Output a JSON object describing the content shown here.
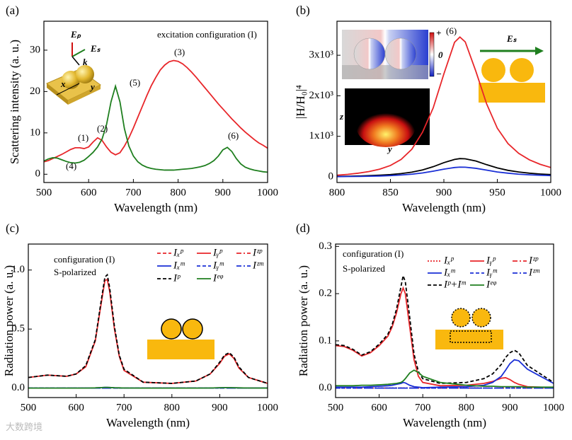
{
  "watermark": "大数跨境",
  "chart_data": [
    {
      "type": "line",
      "label": "(a)",
      "xlabel": "Wavelength (nm)",
      "ylabel": "Scattering intensity (a. u.)",
      "xlim": [
        500,
        1000
      ],
      "xticks": [
        500,
        600,
        700,
        800,
        900,
        1000
      ],
      "ylim": [
        -2,
        37
      ],
      "yticks": [
        0,
        10,
        20,
        30
      ],
      "annotations": [
        "(1)",
        "(2)",
        "(3)",
        "(4)",
        "(5)",
        "(6)",
        "excitation configuration (I)"
      ],
      "inset_labels": [
        "Eₚ",
        "Eₛ",
        "k",
        "x",
        "y"
      ],
      "x": [
        500,
        510,
        520,
        530,
        540,
        550,
        560,
        570,
        580,
        590,
        600,
        610,
        620,
        630,
        640,
        650,
        660,
        670,
        680,
        690,
        700,
        710,
        720,
        730,
        740,
        750,
        760,
        770,
        780,
        790,
        800,
        810,
        820,
        830,
        840,
        850,
        860,
        870,
        880,
        890,
        900,
        910,
        920,
        930,
        940,
        950,
        960,
        970,
        980,
        990,
        1000
      ],
      "series": [
        {
          "color": "#e8262a",
          "dash": "solid",
          "values": [
            3.0,
            3.3,
            3.8,
            4.3,
            4.8,
            5.4,
            6.0,
            6.4,
            6.4,
            6.2,
            6.6,
            7.8,
            8.8,
            8.2,
            6.6,
            5.3,
            4.7,
            5.2,
            6.8,
            8.8,
            11.2,
            13.8,
            16.4,
            19.0,
            21.4,
            23.4,
            25.2,
            26.4,
            27.2,
            27.5,
            27.3,
            26.7,
            25.8,
            24.7,
            23.5,
            22.2,
            20.9,
            19.6,
            18.3,
            17.0,
            15.8,
            14.6,
            13.4,
            12.3,
            11.2,
            10.2,
            9.3,
            8.4,
            7.6,
            7.0,
            6.3
          ]
        },
        {
          "color": "#1f7f1f",
          "dash": "solid",
          "values": [
            3.2,
            3.7,
            4.0,
            3.9,
            3.5,
            3.1,
            2.8,
            2.7,
            2.9,
            3.4,
            4.3,
            5.3,
            6.6,
            8.5,
            12,
            17.5,
            21.3,
            17.5,
            11.0,
            6.8,
            4.4,
            3.0,
            2.2,
            1.7,
            1.4,
            1.2,
            1.1,
            1.0,
            1.0,
            1.0,
            1.1,
            1.2,
            1.3,
            1.4,
            1.6,
            1.8,
            2.1,
            2.6,
            3.3,
            4.4,
            5.9,
            6.5,
            5.5,
            3.8,
            2.5,
            1.7,
            1.3,
            1.0,
            0.8,
            0.6,
            0.5
          ]
        }
      ]
    },
    {
      "type": "line",
      "label": "(b)",
      "xlabel": "Wavelength (nm)",
      "ylabel": "|H/H₀|⁴",
      "xlim": [
        800,
        1000
      ],
      "xticks": [
        800,
        850,
        900,
        950,
        1000
      ],
      "ylim": [
        -140,
        3840
      ],
      "yticks": [
        0,
        {
          "value": 1000,
          "label": "1x10³"
        },
        {
          "value": 2000,
          "label": "2x10³"
        },
        {
          "value": 3000,
          "label": "3x10³"
        }
      ],
      "annotations": [
        "(6)"
      ],
      "inset_labels": [
        "+",
        "0",
        "−",
        "z",
        "y",
        "Eₛ"
      ],
      "x": [
        800,
        810,
        820,
        830,
        840,
        850,
        860,
        870,
        880,
        890,
        900,
        910,
        915,
        920,
        930,
        940,
        950,
        960,
        970,
        980,
        990,
        1000
      ],
      "series": [
        {
          "color": "#e8262a",
          "dash": "solid",
          "values": [
            40,
            60,
            90,
            130,
            190,
            280,
            430,
            680,
            1100,
            1700,
            2540,
            3320,
            3450,
            3330,
            2600,
            1800,
            1200,
            820,
            580,
            420,
            310,
            230
          ]
        },
        {
          "color": "#000000",
          "dash": "solid",
          "values": [
            10,
            15,
            20,
            30,
            40,
            55,
            80,
            115,
            170,
            250,
            350,
            430,
            450,
            445,
            390,
            300,
            220,
            160,
            120,
            90,
            70,
            55
          ]
        },
        {
          "color": "#1a2fd6",
          "dash": "solid",
          "values": [
            5,
            8,
            10,
            15,
            20,
            30,
            45,
            65,
            95,
            140,
            190,
            230,
            240,
            238,
            210,
            165,
            120,
            90,
            65,
            50,
            40,
            30
          ]
        }
      ]
    },
    {
      "type": "line",
      "label": "(c)",
      "xlabel": "Wavelength (nm)",
      "ylabel": "Radiation power (a. u.)",
      "xlim": [
        500,
        1000
      ],
      "xticks": [
        500,
        600,
        700,
        800,
        900,
        1000
      ],
      "ylim": [
        -0.08,
        1.22
      ],
      "yticks": [
        {
          "value": 0,
          "label": "0.0"
        },
        {
          "value": 0.5,
          "label": "0.5"
        },
        {
          "value": 1,
          "label": "1.0"
        }
      ],
      "annotations": [
        "configuration (I)",
        "S-polarized"
      ],
      "x": [
        500,
        540,
        580,
        600,
        620,
        640,
        650,
        660,
        665,
        670,
        680,
        690,
        700,
        740,
        800,
        850,
        880,
        900,
        910,
        920,
        930,
        940,
        960,
        1000
      ],
      "series": [
        {
          "name": "Iₓᵖ",
          "color": "#e8262a",
          "dash": "dashed",
          "values": [
            0,
            0,
            0,
            0,
            0,
            0,
            0,
            0,
            0,
            0,
            0,
            0,
            0,
            0,
            0,
            0,
            0,
            0,
            0,
            0,
            0,
            0,
            0,
            0
          ]
        },
        {
          "name": "Iᵧᵖ",
          "color": "#e8262a",
          "dash": "solid",
          "values": [
            0.09,
            0.11,
            0.1,
            0.12,
            0.18,
            0.4,
            0.66,
            0.91,
            0.92,
            0.82,
            0.5,
            0.27,
            0.15,
            0.05,
            0.04,
            0.06,
            0.12,
            0.21,
            0.27,
            0.29,
            0.25,
            0.17,
            0.09,
            0.04
          ]
        },
        {
          "name": "Iᶻᵖ",
          "color": "#e8262a",
          "dash": "dashdot",
          "values": [
            0,
            0,
            0,
            0,
            0,
            0,
            0,
            0,
            0,
            0,
            0,
            0,
            0,
            0,
            0,
            0,
            0,
            0,
            0,
            0,
            0,
            0,
            0,
            0
          ]
        },
        {
          "name": "Iₓᵐ",
          "color": "#1a2fd6",
          "dash": "solid",
          "values": [
            0,
            0,
            0,
            0,
            0,
            0.002,
            0.004,
            0.006,
            0.006,
            0.005,
            0.003,
            0.002,
            0.001,
            0,
            0,
            0,
            0.001,
            0.003,
            0.004,
            0.004,
            0.003,
            0.002,
            0.001,
            0
          ]
        },
        {
          "name": "Iᵧᵐ",
          "color": "#1a2fd6",
          "dash": "dashed",
          "values": [
            0,
            0,
            0,
            0,
            0,
            0,
            0,
            0,
            0,
            0,
            0,
            0,
            0,
            0,
            0,
            0,
            0,
            0,
            0,
            0,
            0,
            0,
            0,
            0
          ]
        },
        {
          "name": "Iᶻᵐ",
          "color": "#1a2fd6",
          "dash": "dashdot",
          "values": [
            0,
            0,
            0,
            0,
            0,
            0,
            0,
            0,
            0,
            0,
            0,
            0,
            0,
            0,
            0,
            0,
            0,
            0,
            0,
            0,
            0,
            0,
            0,
            0
          ]
        },
        {
          "name": "Iᵖ",
          "color": "#000000",
          "dash": "dashed",
          "values": [
            0.09,
            0.11,
            0.1,
            0.12,
            0.19,
            0.41,
            0.68,
            0.94,
            0.96,
            0.85,
            0.52,
            0.28,
            0.16,
            0.05,
            0.04,
            0.06,
            0.12,
            0.22,
            0.28,
            0.3,
            0.26,
            0.18,
            0.09,
            0.04
          ]
        },
        {
          "name": "Iᵉᵠ",
          "color": "#1f7f1f",
          "dash": "solid",
          "values": [
            0,
            0,
            0,
            0,
            0,
            0.002,
            0.004,
            0.006,
            0.006,
            0.005,
            0.003,
            0.002,
            0.001,
            0,
            0,
            0,
            0.001,
            0.003,
            0.004,
            0.004,
            0.003,
            0.002,
            0.001,
            0
          ]
        }
      ]
    },
    {
      "type": "line",
      "label": "(d)",
      "xlabel": "Wavelength (nm)",
      "ylabel": "Radiation power (a. u.)",
      "xlim": [
        500,
        1000
      ],
      "xticks": [
        500,
        600,
        700,
        800,
        900,
        1000
      ],
      "ylim": [
        -0.02,
        0.305
      ],
      "yticks": [
        {
          "value": 0,
          "label": "0.0"
        },
        {
          "value": 0.1,
          "label": "0.1"
        },
        {
          "value": 0.2,
          "label": "0.2"
        },
        {
          "value": 0.3,
          "label": "0.3"
        }
      ],
      "annotations": [
        "configuration (I)",
        "S-polarized"
      ],
      "x": [
        500,
        520,
        540,
        560,
        580,
        600,
        620,
        630,
        640,
        650,
        655,
        660,
        670,
        680,
        690,
        700,
        740,
        800,
        840,
        860,
        880,
        890,
        900,
        910,
        920,
        940,
        1000
      ],
      "series": [
        {
          "name": "Iₓᵖ",
          "color": "#e8262a",
          "dash": "dotted",
          "values": [
            0,
            0,
            0,
            0,
            0,
            0,
            0,
            0,
            0,
            0,
            0,
            0,
            0,
            0,
            0,
            0,
            0,
            0,
            0,
            0,
            0,
            0,
            0,
            0,
            0,
            0,
            0
          ]
        },
        {
          "name": "Iᵧᵖ",
          "color": "#e8262a",
          "dash": "solid",
          "values": [
            0.09,
            0.088,
            0.08,
            0.068,
            0.075,
            0.09,
            0.11,
            0.13,
            0.16,
            0.2,
            0.212,
            0.2,
            0.13,
            0.06,
            0.025,
            0.012,
            0.005,
            0.006,
            0.01,
            0.014,
            0.021,
            0.022,
            0.018,
            0.012,
            0.008,
            0.003,
            0.001
          ]
        },
        {
          "name": "Iᶻᵖ",
          "color": "#e8262a",
          "dash": "dashdot",
          "values": [
            0,
            0,
            0,
            0,
            0,
            0,
            0,
            0,
            0,
            0,
            0,
            0,
            0,
            0,
            0,
            0,
            0,
            0,
            0,
            0,
            0,
            0,
            0,
            0,
            0,
            0,
            0
          ]
        },
        {
          "name": "Iₓᵐ",
          "color": "#1a2fd6",
          "dash": "solid",
          "values": [
            0.002,
            0.002,
            0.002,
            0.002,
            0.003,
            0.004,
            0.005,
            0.006,
            0.008,
            0.01,
            0.012,
            0.011,
            0.006,
            0.003,
            0.002,
            0.001,
            0.002,
            0.003,
            0.006,
            0.012,
            0.025,
            0.038,
            0.052,
            0.06,
            0.058,
            0.04,
            0.01
          ]
        },
        {
          "name": "Iᵧᵐ",
          "color": "#1a2fd6",
          "dash": "dashed",
          "values": [
            0,
            0,
            0,
            0,
            0,
            0,
            0,
            0,
            0,
            0,
            0,
            0,
            0,
            0,
            0,
            0,
            0,
            0,
            0,
            0,
            0,
            0,
            0,
            0,
            0,
            0,
            0
          ]
        },
        {
          "name": "Iᶻᵐ",
          "color": "#1a2fd6",
          "dash": "dashdot",
          "values": [
            0,
            0,
            0,
            0,
            0,
            0,
            0,
            0,
            0,
            0,
            0,
            0,
            0,
            0,
            0,
            0,
            0,
            0,
            0,
            0,
            0,
            0,
            0,
            0,
            0,
            0,
            0
          ]
        },
        {
          "name": "Iᵖ+Iᵐ",
          "color": "#000000",
          "dash": "dashed",
          "values": [
            0.092,
            0.09,
            0.082,
            0.07,
            0.077,
            0.093,
            0.114,
            0.135,
            0.168,
            0.215,
            0.238,
            0.225,
            0.15,
            0.072,
            0.035,
            0.02,
            0.01,
            0.012,
            0.02,
            0.03,
            0.05,
            0.065,
            0.075,
            0.08,
            0.075,
            0.048,
            0.012
          ]
        },
        {
          "name": "Iᵉᵠ",
          "color": "#1f7f1f",
          "dash": "solid",
          "values": [
            0.005,
            0.005,
            0.005,
            0.006,
            0.006,
            0.007,
            0.008,
            0.009,
            0.01,
            0.012,
            0.015,
            0.02,
            0.032,
            0.038,
            0.033,
            0.025,
            0.012,
            0.006,
            0.004,
            0.004,
            0.003,
            0.003,
            0.003,
            0.003,
            0.003,
            0.002,
            0.002
          ]
        }
      ]
    }
  ]
}
